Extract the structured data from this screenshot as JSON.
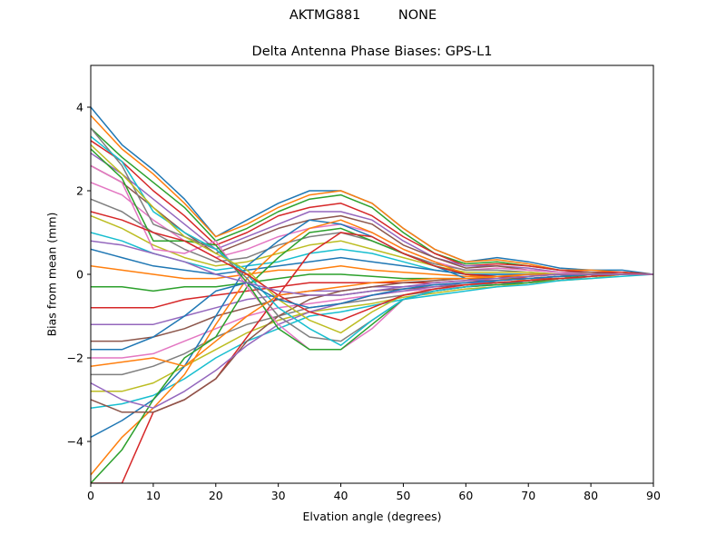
{
  "header": {
    "suptitle_station": "AKTMG881",
    "suptitle_radome": "NONE"
  },
  "chart_data": {
    "type": "line",
    "title": "Delta Antenna Phase Biases: GPS-L1",
    "xlabel": "Elvation angle (degrees)",
    "ylabel": "Bias from mean (mm)",
    "xlim": [
      0,
      90
    ],
    "ylim": [
      -5,
      5
    ],
    "xticks": [
      0,
      10,
      20,
      30,
      40,
      50,
      60,
      70,
      80,
      90
    ],
    "yticks": [
      -4,
      -2,
      0,
      2,
      4
    ],
    "grid": false,
    "legend": "none",
    "x": [
      0,
      5,
      10,
      15,
      20,
      25,
      30,
      35,
      40,
      45,
      50,
      55,
      60,
      65,
      70,
      75,
      80,
      85,
      90
    ],
    "series": [
      {
        "color": "#1f77b4",
        "values": [
          4.0,
          3.1,
          2.5,
          1.8,
          0.9,
          1.3,
          1.7,
          2.0,
          2.0,
          1.7,
          1.1,
          0.6,
          0.3,
          0.4,
          0.3,
          0.15,
          0.1,
          0.1,
          0.0
        ]
      },
      {
        "color": "#ff7f0e",
        "values": [
          3.8,
          3.0,
          2.4,
          1.7,
          0.9,
          1.2,
          1.6,
          1.9,
          2.0,
          1.7,
          1.1,
          0.6,
          0.3,
          0.35,
          0.25,
          0.1,
          0.1,
          0.05,
          0.0
        ]
      },
      {
        "color": "#2ca02c",
        "values": [
          3.5,
          2.8,
          2.2,
          1.6,
          0.8,
          1.1,
          1.5,
          1.8,
          1.9,
          1.6,
          1.0,
          0.5,
          0.25,
          0.3,
          0.2,
          0.1,
          0.05,
          0.05,
          0.0
        ]
      },
      {
        "color": "#d62728",
        "values": [
          3.2,
          2.7,
          2.0,
          1.4,
          0.7,
          1.0,
          1.4,
          1.6,
          1.7,
          1.4,
          0.9,
          0.5,
          0.2,
          0.25,
          0.2,
          0.1,
          0.05,
          0.05,
          0.0
        ]
      },
      {
        "color": "#9467bd",
        "values": [
          2.9,
          2.4,
          1.8,
          1.2,
          0.6,
          0.9,
          1.2,
          1.5,
          1.5,
          1.3,
          0.8,
          0.4,
          0.2,
          0.2,
          0.15,
          0.05,
          0.05,
          0.0,
          0.0
        ]
      },
      {
        "color": "#8c564b",
        "values": [
          2.6,
          2.2,
          1.6,
          1.0,
          0.5,
          0.8,
          1.1,
          1.3,
          1.4,
          1.2,
          0.7,
          0.4,
          0.15,
          0.2,
          0.1,
          0.05,
          0.05,
          0.0,
          0.0
        ]
      },
      {
        "color": "#e377c2",
        "values": [
          2.2,
          1.9,
          1.3,
          0.8,
          0.4,
          0.6,
          0.9,
          1.1,
          1.2,
          1.0,
          0.6,
          0.3,
          0.1,
          0.15,
          0.1,
          0.05,
          0.0,
          0.0,
          0.0
        ]
      },
      {
        "color": "#7f7f7f",
        "values": [
          1.8,
          1.5,
          1.0,
          0.6,
          0.3,
          0.4,
          0.7,
          0.9,
          1.0,
          0.8,
          0.5,
          0.25,
          0.1,
          0.1,
          0.05,
          0.0,
          0.0,
          0.0,
          0.0
        ]
      },
      {
        "color": "#bcbd22",
        "values": [
          1.4,
          1.1,
          0.7,
          0.4,
          0.2,
          0.3,
          0.5,
          0.7,
          0.8,
          0.6,
          0.4,
          0.2,
          0.05,
          0.05,
          0.05,
          0.0,
          0.0,
          0.0,
          0.0
        ]
      },
      {
        "color": "#17becf",
        "values": [
          1.0,
          0.8,
          0.5,
          0.3,
          0.1,
          0.2,
          0.3,
          0.5,
          0.6,
          0.5,
          0.3,
          0.1,
          0.0,
          0.0,
          0.0,
          0.0,
          0.0,
          0.0,
          0.0
        ]
      },
      {
        "color": "#1f77b4",
        "values": [
          0.6,
          0.4,
          0.2,
          0.1,
          0.0,
          0.1,
          0.2,
          0.3,
          0.4,
          0.3,
          0.2,
          0.1,
          0.0,
          0.0,
          0.0,
          0.0,
          0.0,
          0.0,
          0.0
        ]
      },
      {
        "color": "#ff7f0e",
        "values": [
          0.2,
          0.1,
          0.0,
          -0.1,
          -0.1,
          0.0,
          0.1,
          0.1,
          0.2,
          0.1,
          0.05,
          0.0,
          -0.05,
          -0.05,
          -0.05,
          0.0,
          0.0,
          0.0,
          0.0
        ]
      },
      {
        "color": "#2ca02c",
        "values": [
          -0.3,
          -0.3,
          -0.4,
          -0.3,
          -0.3,
          -0.2,
          -0.1,
          0.0,
          0.0,
          -0.05,
          -0.1,
          -0.1,
          -0.1,
          -0.1,
          -0.1,
          -0.05,
          -0.05,
          0.0,
          0.0
        ]
      },
      {
        "color": "#d62728",
        "values": [
          -0.8,
          -0.8,
          -0.8,
          -0.6,
          -0.5,
          -0.4,
          -0.3,
          -0.2,
          -0.2,
          -0.2,
          -0.2,
          -0.2,
          -0.15,
          -0.15,
          -0.1,
          -0.1,
          -0.05,
          0.0,
          0.0
        ]
      },
      {
        "color": "#9467bd",
        "values": [
          -1.2,
          -1.2,
          -1.2,
          -1.0,
          -0.8,
          -0.6,
          -0.5,
          -0.4,
          -0.4,
          -0.3,
          -0.3,
          -0.25,
          -0.2,
          -0.2,
          -0.15,
          -0.1,
          -0.05,
          0.0,
          0.0
        ]
      },
      {
        "color": "#8c564b",
        "values": [
          -1.6,
          -1.6,
          -1.5,
          -1.3,
          -1.0,
          -0.8,
          -0.6,
          -0.5,
          -0.5,
          -0.4,
          -0.35,
          -0.3,
          -0.25,
          -0.2,
          -0.15,
          -0.1,
          -0.05,
          0.0,
          0.0
        ]
      },
      {
        "color": "#e377c2",
        "values": [
          -2.0,
          -2.0,
          -1.9,
          -1.6,
          -1.3,
          -1.0,
          -0.8,
          -0.7,
          -0.6,
          -0.5,
          -0.4,
          -0.35,
          -0.3,
          -0.25,
          -0.2,
          -0.1,
          -0.05,
          0.0,
          0.0
        ]
      },
      {
        "color": "#7f7f7f",
        "values": [
          -2.4,
          -2.4,
          -2.2,
          -1.9,
          -1.5,
          -1.2,
          -1.0,
          -0.8,
          -0.7,
          -0.6,
          -0.5,
          -0.4,
          -0.3,
          -0.25,
          -0.2,
          -0.15,
          -0.05,
          0.0,
          0.0
        ]
      },
      {
        "color": "#bcbd22",
        "values": [
          -2.8,
          -2.8,
          -2.6,
          -2.2,
          -1.8,
          -1.4,
          -1.1,
          -0.9,
          -0.8,
          -0.7,
          -0.55,
          -0.45,
          -0.35,
          -0.3,
          -0.2,
          -0.15,
          -0.1,
          0.0,
          0.0
        ]
      },
      {
        "color": "#17becf",
        "values": [
          -3.2,
          -3.1,
          -2.9,
          -2.5,
          -2.0,
          -1.6,
          -1.3,
          -1.0,
          -0.9,
          -0.75,
          -0.6,
          -0.5,
          -0.4,
          -0.3,
          -0.25,
          -0.15,
          -0.1,
          -0.05,
          0.0
        ]
      },
      {
        "color": "#1f77b4",
        "values": [
          -3.9,
          -3.5,
          -3.0,
          -2.2,
          -1.0,
          0.2,
          0.8,
          1.3,
          1.2,
          0.9,
          0.5,
          0.2,
          -0.1,
          -0.2,
          -0.2,
          -0.1,
          -0.05,
          0.0,
          0.0
        ]
      },
      {
        "color": "#ff7f0e",
        "values": [
          -4.8,
          -3.9,
          -3.2,
          -2.4,
          -1.2,
          -0.1,
          0.6,
          1.1,
          1.3,
          1.0,
          0.6,
          0.3,
          0.0,
          -0.1,
          -0.15,
          -0.1,
          -0.05,
          0.0,
          0.0
        ]
      },
      {
        "color": "#2ca02c",
        "values": [
          -5.0,
          -4.2,
          -3.0,
          -2.0,
          -1.5,
          -0.3,
          0.4,
          1.0,
          1.1,
          0.8,
          0.5,
          0.2,
          0.0,
          -0.05,
          -0.1,
          -0.05,
          0.0,
          0.0,
          0.0
        ]
      },
      {
        "color": "#d62728",
        "values": [
          -5.0,
          -5.0,
          -3.3,
          -3.0,
          -2.5,
          -1.5,
          -0.5,
          0.5,
          1.0,
          0.9,
          0.5,
          0.2,
          0.0,
          -0.05,
          -0.1,
          -0.05,
          0.0,
          0.0,
          0.0
        ]
      },
      {
        "color": "#8c564b",
        "values": [
          -3.0,
          -3.3,
          -3.3,
          -3.0,
          -2.5,
          -1.6,
          -1.0,
          -0.6,
          -0.4,
          -0.3,
          -0.2,
          -0.15,
          -0.1,
          -0.1,
          -0.05,
          0.0,
          0.0,
          0.0,
          0.0
        ]
      },
      {
        "color": "#9467bd",
        "values": [
          -2.6,
          -3.0,
          -3.2,
          -2.8,
          -2.3,
          -1.7,
          -1.2,
          -0.9,
          -0.7,
          -0.5,
          -0.4,
          -0.3,
          -0.2,
          -0.15,
          -0.1,
          -0.05,
          0.0,
          0.0,
          0.0
        ]
      },
      {
        "color": "#e377c2",
        "values": [
          2.6,
          2.2,
          0.6,
          0.5,
          0.8,
          -0.3,
          -1.2,
          -1.8,
          -1.8,
          -1.3,
          -0.6,
          -0.4,
          -0.3,
          -0.25,
          -0.2,
          -0.1,
          -0.05,
          0.0,
          0.0
        ]
      },
      {
        "color": "#2ca02c",
        "values": [
          3.0,
          2.3,
          0.8,
          0.8,
          0.7,
          -0.2,
          -1.3,
          -1.8,
          -1.8,
          -1.2,
          -0.6,
          -0.4,
          -0.3,
          -0.25,
          -0.2,
          -0.1,
          -0.05,
          0.0,
          0.0
        ]
      },
      {
        "color": "#7f7f7f",
        "values": [
          3.5,
          2.6,
          1.2,
          0.9,
          0.6,
          -0.1,
          -1.0,
          -1.5,
          -1.6,
          -1.1,
          -0.6,
          -0.4,
          -0.3,
          -0.2,
          -0.15,
          -0.1,
          -0.05,
          0.0,
          0.0
        ]
      },
      {
        "color": "#17becf",
        "values": [
          3.3,
          2.7,
          1.5,
          1.0,
          0.6,
          0.0,
          -0.8,
          -1.3,
          -1.7,
          -1.1,
          -0.6,
          -0.4,
          -0.3,
          -0.2,
          -0.15,
          -0.1,
          -0.05,
          0.0,
          0.0
        ]
      },
      {
        "color": "#bcbd22",
        "values": [
          3.1,
          2.4,
          1.6,
          0.9,
          0.5,
          0.1,
          -0.6,
          -1.1,
          -1.4,
          -0.9,
          -0.5,
          -0.35,
          -0.25,
          -0.2,
          -0.15,
          -0.1,
          -0.05,
          0.0,
          0.0
        ]
      },
      {
        "color": "#d62728",
        "values": [
          1.5,
          1.3,
          1.0,
          0.8,
          0.4,
          0.0,
          -0.5,
          -0.9,
          -1.1,
          -0.8,
          -0.5,
          -0.35,
          -0.25,
          -0.2,
          -0.15,
          -0.1,
          -0.05,
          0.0,
          0.0
        ]
      },
      {
        "color": "#1f77b4",
        "values": [
          -1.8,
          -1.8,
          -1.5,
          -1.0,
          -0.4,
          -0.2,
          -0.6,
          -0.8,
          -0.7,
          -0.5,
          -0.35,
          -0.25,
          -0.2,
          -0.15,
          -0.1,
          -0.05,
          0.0,
          0.0,
          0.0
        ]
      },
      {
        "color": "#ff7f0e",
        "values": [
          -2.2,
          -2.1,
          -2.0,
          -2.2,
          -1.6,
          -1.0,
          -0.5,
          -0.4,
          -0.3,
          -0.2,
          -0.15,
          -0.1,
          -0.1,
          -0.05,
          0.0,
          0.0,
          0.0,
          0.0,
          0.0
        ]
      },
      {
        "color": "#9467bd",
        "values": [
          0.8,
          0.7,
          0.5,
          0.3,
          0.0,
          -0.2,
          -0.4,
          -0.5,
          -0.5,
          -0.4,
          -0.3,
          -0.2,
          -0.15,
          -0.1,
          -0.05,
          0.0,
          0.0,
          0.0,
          0.0
        ]
      }
    ]
  }
}
